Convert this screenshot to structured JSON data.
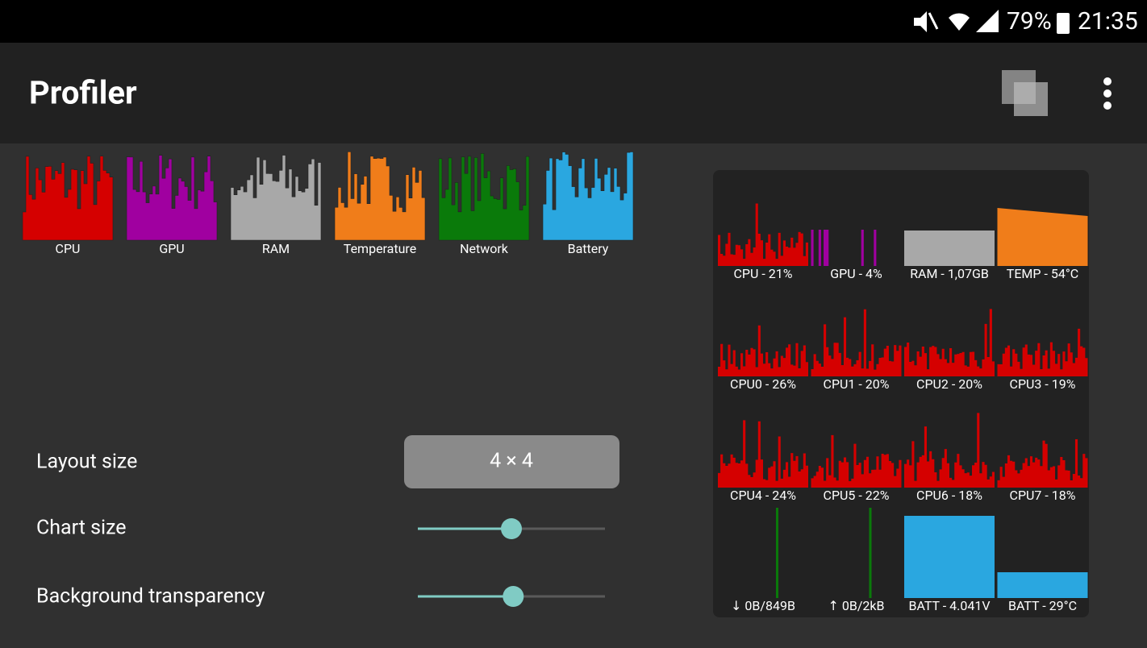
{
  "status_bar": {
    "battery": "79%",
    "time": "21:35"
  },
  "app_bar": {
    "title": "Profiler"
  },
  "legend": [
    "CPU",
    "GPU",
    "RAM",
    "Temperature",
    "Network",
    "Battery"
  ],
  "widget": {
    "cells": [
      "CPU - 21%",
      "GPU - 4%",
      "RAM - 1,07GB",
      "TEMP - 54°C",
      "CPU0 - 26%",
      "CPU1 - 20%",
      "CPU2 - 20%",
      "CPU3 - 19%",
      "CPU4 - 24%",
      "CPU5 - 22%",
      "CPU6 - 18%",
      "CPU7 - 18%",
      "↓ 0B/849B",
      "↑ 0B/2kB",
      "BATT - 4.041V",
      "BATT - 29°C"
    ]
  },
  "settings": {
    "layout_size": {
      "label": "Layout size",
      "value": "4 × 4"
    },
    "chart_size": {
      "label": "Chart size",
      "value": 50
    },
    "background_transparency": {
      "label": "Background transparency",
      "value": 51
    }
  }
}
